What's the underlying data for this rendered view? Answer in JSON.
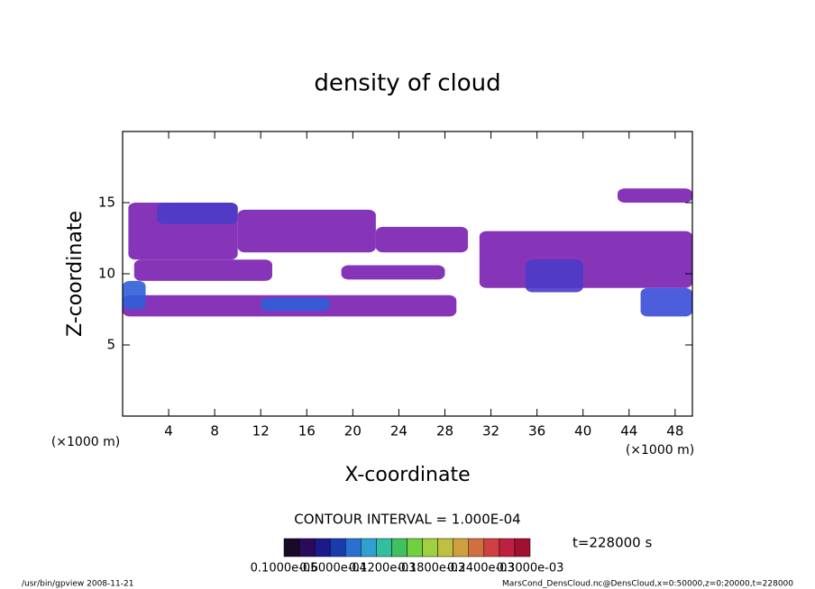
{
  "chart_data": {
    "type": "contour",
    "title": "density of cloud",
    "x_label": "X-coordinate",
    "y_label": "Z-coordinate",
    "x_unit_left": "(×1000 m)",
    "x_unit_right": "(×1000 m)",
    "xlim": [
      0,
      49.5
    ],
    "xticks": [
      4,
      8,
      12,
      16,
      20,
      24,
      28,
      32,
      36,
      40,
      44,
      48
    ],
    "ylim": [
      0,
      20
    ],
    "yticks": [
      5,
      10,
      15
    ],
    "patches": [
      {
        "x": [
          0.5,
          10
        ],
        "z": [
          11,
          15
        ],
        "color": "#7a1fb0"
      },
      {
        "x": [
          3,
          10
        ],
        "z": [
          13.5,
          15
        ],
        "color": "#4a3bc8"
      },
      {
        "x": [
          10,
          22
        ],
        "z": [
          11.5,
          14.5
        ],
        "color": "#7a1fb0"
      },
      {
        "x": [
          22,
          30
        ],
        "z": [
          11.5,
          13.3
        ],
        "color": "#7a1fb0"
      },
      {
        "x": [
          1,
          13
        ],
        "z": [
          9.5,
          11
        ],
        "color": "#7a1fb0"
      },
      {
        "x": [
          19,
          28
        ],
        "z": [
          9.6,
          10.6
        ],
        "color": "#7a1fb0"
      },
      {
        "x": [
          0,
          29
        ],
        "z": [
          7,
          8.5
        ],
        "color": "#7a1fb0"
      },
      {
        "x": [
          0,
          2
        ],
        "z": [
          7.5,
          9.5
        ],
        "color": "#2f5fd8"
      },
      {
        "x": [
          12,
          18
        ],
        "z": [
          7.4,
          8.3
        ],
        "color": "#2f5fd8"
      },
      {
        "x": [
          31,
          49.5
        ],
        "z": [
          9,
          13
        ],
        "color": "#7a1fb0"
      },
      {
        "x": [
          35,
          40
        ],
        "z": [
          8.7,
          11
        ],
        "color": "#4a3bc8"
      },
      {
        "x": [
          43,
          49.5
        ],
        "z": [
          15,
          16
        ],
        "color": "#7a1fb0"
      },
      {
        "x": [
          45,
          49.5
        ],
        "z": [
          7,
          9
        ],
        "color": "#3a4cd8"
      }
    ],
    "contour_interval": "CONTOUR INTERVAL = 1.000E-04",
    "colorbar_colors": [
      "#1a0a2a",
      "#2a0a5a",
      "#1a1a8a",
      "#1a3ab0",
      "#2a70d0",
      "#30a0d0",
      "#30c0a0",
      "#40c060",
      "#70d040",
      "#a0d040",
      "#c0c040",
      "#d0a040",
      "#d07040",
      "#d04040",
      "#c02040",
      "#a01030"
    ],
    "colorbar_labels": [
      "0.1000e-05",
      "0.6000e-04",
      "0.1200e-03",
      "0.1800e-03",
      "0.2400e-03",
      "0.3000e-03"
    ],
    "time": "t=228000 s",
    "footer_left": "/usr/bin/gpview   2008-11-21",
    "footer_right": "MarsCond_DensCloud.nc@DensCloud,x=0:50000,z=0:20000,t=228000"
  }
}
